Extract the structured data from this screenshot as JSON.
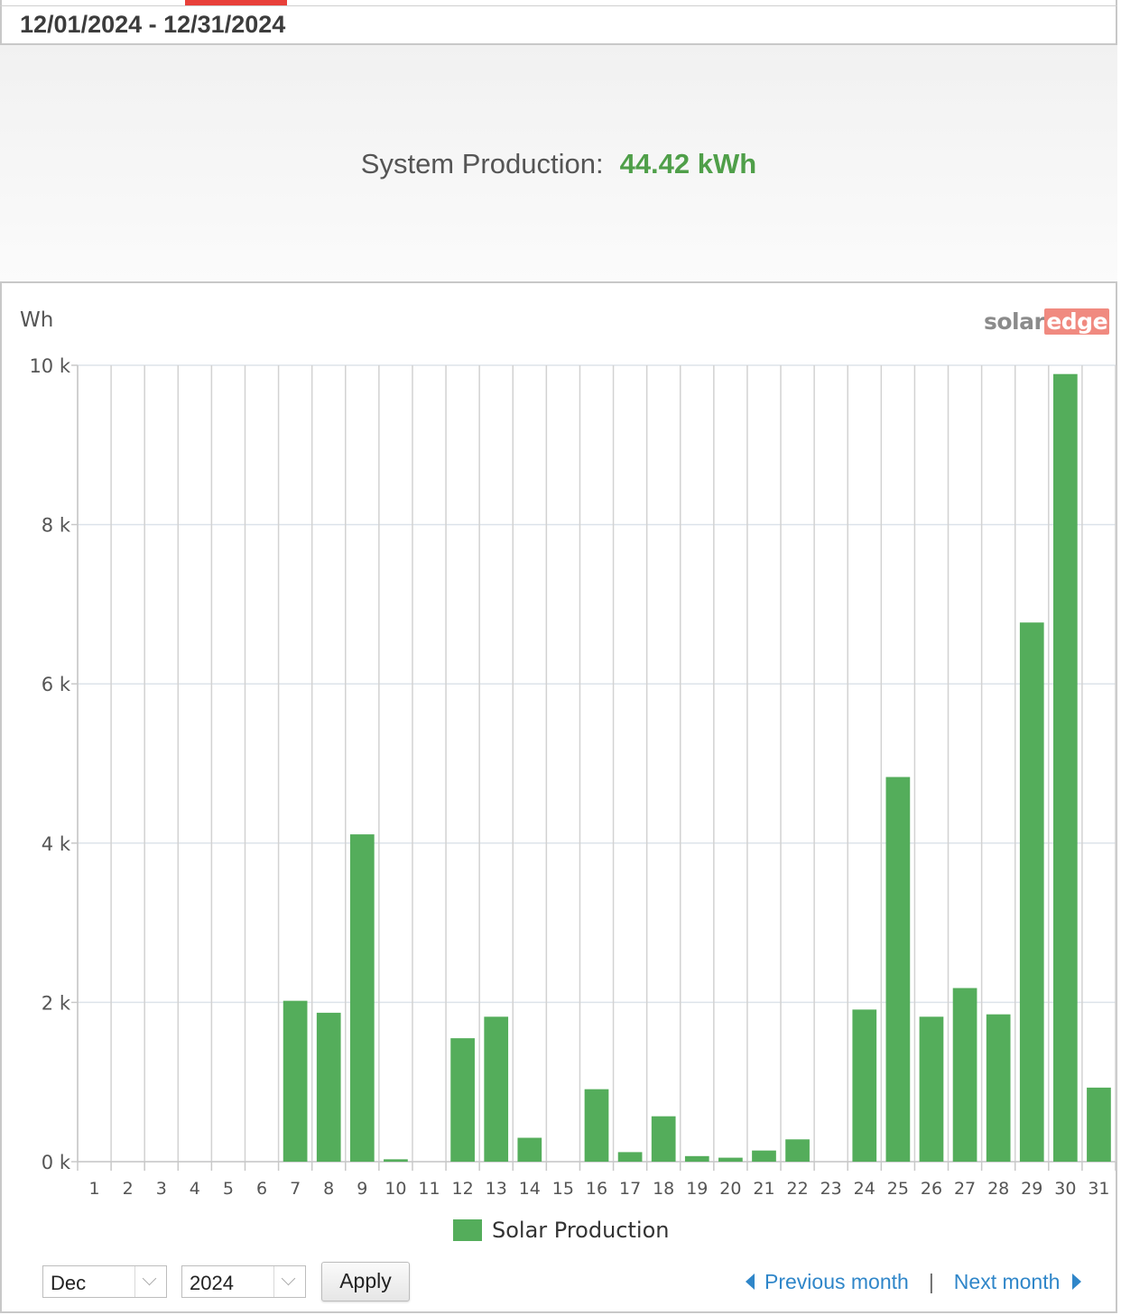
{
  "header": {
    "date_range": "12/01/2024 - 12/31/2024"
  },
  "summary": {
    "label": "System Production:",
    "value": "44.42 kWh"
  },
  "logo": {
    "part1": "solar",
    "part2": "edge"
  },
  "colors": {
    "bar": "#54ad5b",
    "value_text": "#4f9f49",
    "accent": "#e8403a",
    "link": "#2f86c9"
  },
  "chart_data": {
    "type": "bar",
    "ylabel": "Wh",
    "ylim": [
      0,
      10000
    ],
    "yticks": [
      0,
      2000,
      4000,
      6000,
      8000,
      10000
    ],
    "ytick_labels": [
      "0 k",
      "2 k",
      "4 k",
      "6 k",
      "8 k",
      "10 k"
    ],
    "categories": [
      "1",
      "2",
      "3",
      "4",
      "5",
      "6",
      "7",
      "8",
      "9",
      "10",
      "11",
      "12",
      "13",
      "14",
      "15",
      "16",
      "17",
      "18",
      "19",
      "20",
      "21",
      "22",
      "23",
      "24",
      "25",
      "26",
      "27",
      "28",
      "29",
      "30",
      "31"
    ],
    "series": [
      {
        "name": "Solar Production",
        "values": [
          0,
          0,
          0,
          0,
          0,
          0,
          2020,
          1870,
          4110,
          30,
          0,
          1550,
          1820,
          300,
          0,
          910,
          120,
          570,
          70,
          50,
          140,
          280,
          0,
          1910,
          4830,
          1820,
          2180,
          1850,
          6770,
          9890,
          930
        ]
      }
    ],
    "grid": true,
    "legend_position": "bottom-center"
  },
  "controls": {
    "month_select": "Dec",
    "year_select": "2024",
    "apply_label": "Apply",
    "prev_label": "Previous month",
    "separator": "|",
    "next_label": "Next month"
  }
}
